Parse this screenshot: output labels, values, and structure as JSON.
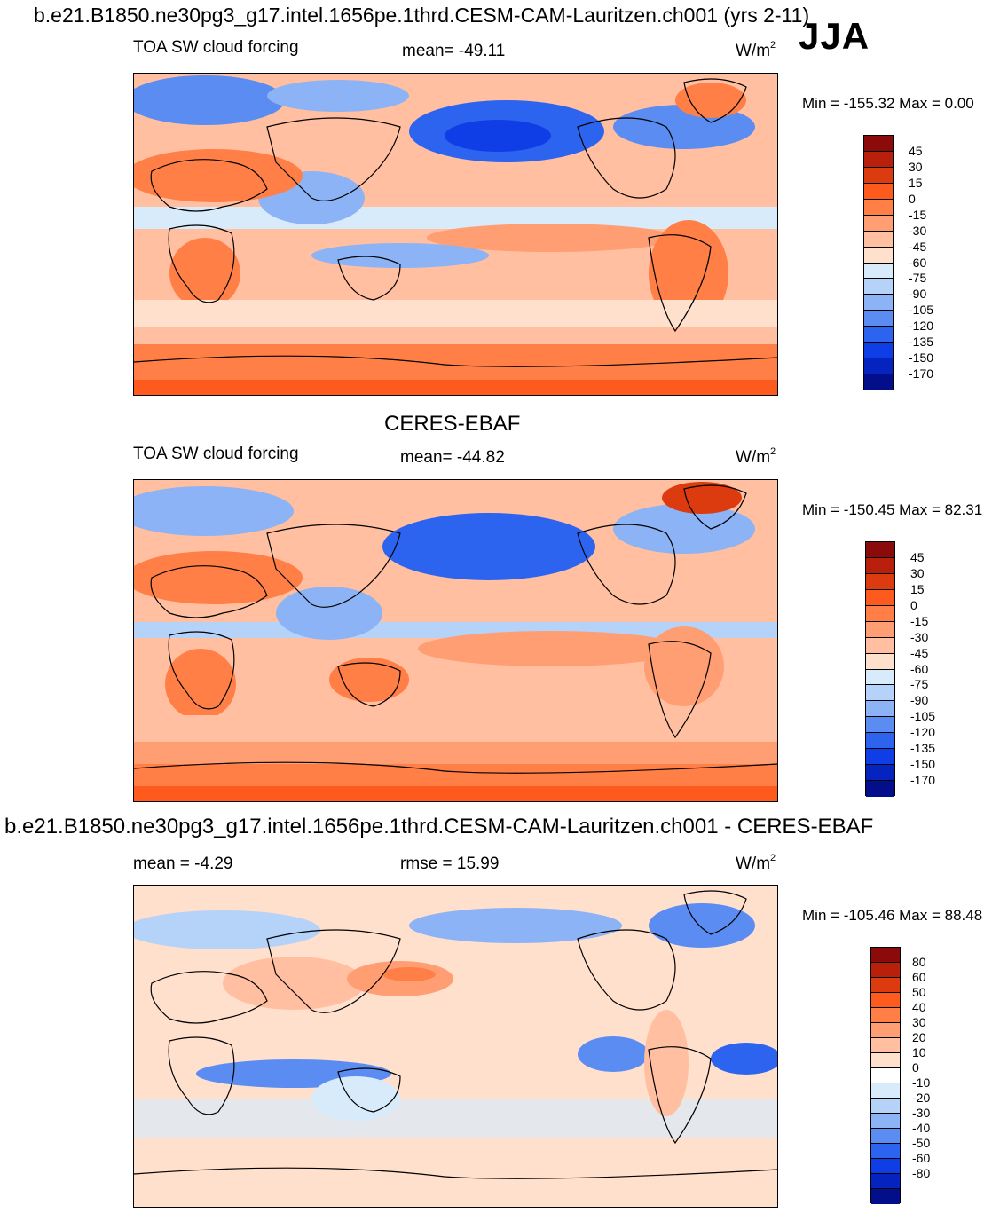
{
  "header": {
    "title": "b.e21.B1850.ne30pg3_g17.intel.1656pe.1thrd.CESM-CAM-Lauritzen.ch001 (yrs 2-11)",
    "season": "JJA"
  },
  "panels": [
    {
      "id": "model",
      "variable": "TOA SW cloud forcing",
      "stat": "mean= -49.11",
      "units_base": "W/m",
      "units_exp": "2",
      "minmax": "Min = -155.32 Max =   0.00",
      "colorbar_labels": [
        "45",
        "30",
        "15",
        "0",
        "-15",
        "-30",
        "-45",
        "-60",
        "-75",
        "-90",
        "-105",
        "-120",
        "-135",
        "-150",
        "-170"
      ]
    },
    {
      "id": "obs",
      "dataset_title": "CERES-EBAF",
      "variable": "TOA SW cloud forcing",
      "stat": "mean= -44.82",
      "units_base": "W/m",
      "units_exp": "2",
      "minmax": "Min = -150.45 Max =  82.31",
      "colorbar_labels": [
        "45",
        "30",
        "15",
        "0",
        "-15",
        "-30",
        "-45",
        "-60",
        "-75",
        "-90",
        "-105",
        "-120",
        "-135",
        "-150",
        "-170"
      ]
    },
    {
      "id": "diff",
      "dataset_title": "b.e21.B1850.ne30pg3_g17.intel.1656pe.1thrd.CESM-CAM-Lauritzen.ch001 - CERES-EBAF",
      "stat": "mean =  -4.29",
      "rmse": "rmse =  15.99",
      "units_base": "W/m",
      "units_exp": "2",
      "minmax": "Min = -105.46 Max =  88.48",
      "colorbar_labels": [
        "80",
        "60",
        "50",
        "40",
        "30",
        "20",
        "10",
        "0",
        "-10",
        "-20",
        "-30",
        "-40",
        "-50",
        "-60",
        "-80"
      ]
    }
  ],
  "colors": {
    "field_scale": [
      "#8b0a0a",
      "#b8200c",
      "#dc3a0f",
      "#ff5a1e",
      "#ff7f47",
      "#ff9e73",
      "#ffbfa0",
      "#ffe0cd",
      "#d8ebfb",
      "#b5d2f8",
      "#8cb3f5",
      "#5a8cf2",
      "#2d64ef",
      "#103ee6",
      "#0524bf",
      "#030f8a"
    ],
    "diff_scale": [
      "#8b0a0a",
      "#b8200c",
      "#dc3a0f",
      "#ff5a1e",
      "#ff7f47",
      "#ff9e73",
      "#ffbfa0",
      "#ffe0cd",
      "#ffffff",
      "#d8ebfb",
      "#b5d2f8",
      "#8cb3f5",
      "#5a8cf2",
      "#2d64ef",
      "#103ee6",
      "#0524bf",
      "#030f8a"
    ]
  }
}
